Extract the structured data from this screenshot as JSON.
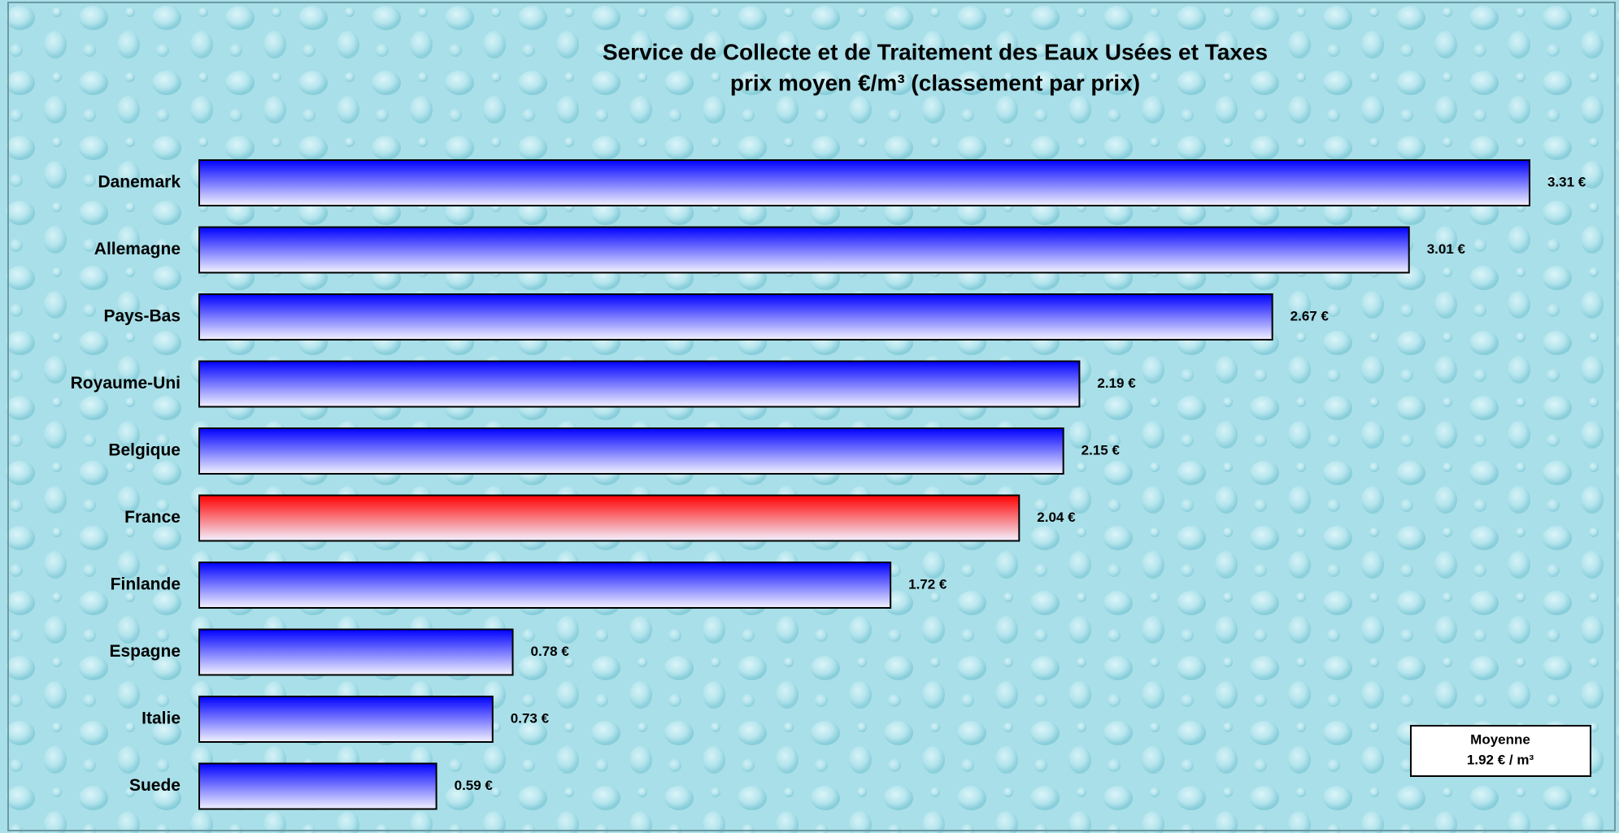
{
  "chart_data": {
    "type": "bar",
    "orientation": "horizontal",
    "title": "Service de Collecte et de Traitement des Eaux Usées et Taxes",
    "subtitle": "prix moyen €/m³ (classement par prix)",
    "categories": [
      "Danemark",
      "Allemagne",
      "Pays-Bas",
      "Royaume-Uni",
      "Belgique",
      "France",
      "Finlande",
      "Espagne",
      "Italie",
      "Suede"
    ],
    "values": [
      3.31,
      3.01,
      2.67,
      2.19,
      2.15,
      2.04,
      1.72,
      0.78,
      0.73,
      0.59
    ],
    "value_labels": [
      "3.31 €",
      "3.01 €",
      "2.67 €",
      "2.19 €",
      "2.15 €",
      "2.04 €",
      "1.72 €",
      "0.78 €",
      "0.73 €",
      "0.59 €"
    ],
    "colors": [
      "#0000ff",
      "#0000ff",
      "#0000ff",
      "#0000ff",
      "#0000ff",
      "#ff0000",
      "#0000ff",
      "#0000ff",
      "#0000ff",
      "#0000ff"
    ],
    "xlim": [
      0,
      3.31
    ],
    "annotation": {
      "title": "Moyenne",
      "text": "1.92 € / m³"
    }
  }
}
